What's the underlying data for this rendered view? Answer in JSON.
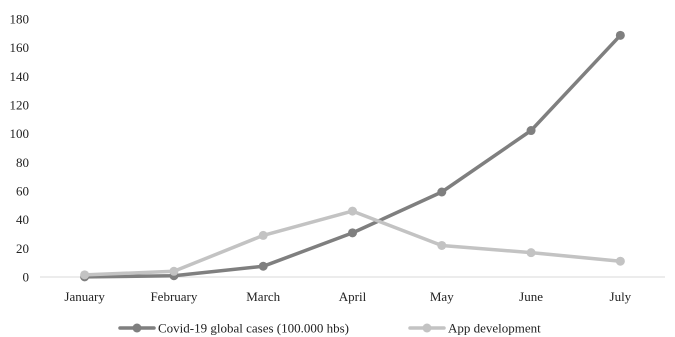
{
  "chart_data": {
    "type": "line",
    "categories": [
      "January",
      "February",
      "March",
      "April",
      "May",
      "June",
      "July"
    ],
    "series": [
      {
        "name": "Covid-19 global cases (100.000 hbs)",
        "color": "#7f7f7f",
        "values": [
          0.1,
          0.9,
          7.5,
          30.8,
          59.3,
          102.2,
          168.6
        ]
      },
      {
        "name": "App development",
        "color": "#c3c3c3",
        "values": [
          1.5,
          4.0,
          29.0,
          46.0,
          22.0,
          17.0,
          11.0
        ]
      }
    ],
    "y_ticks": [
      0,
      20,
      40,
      60,
      80,
      100,
      120,
      140,
      160,
      180
    ],
    "ylim": [
      0,
      180
    ],
    "grid": false,
    "legend_position": "bottom"
  }
}
